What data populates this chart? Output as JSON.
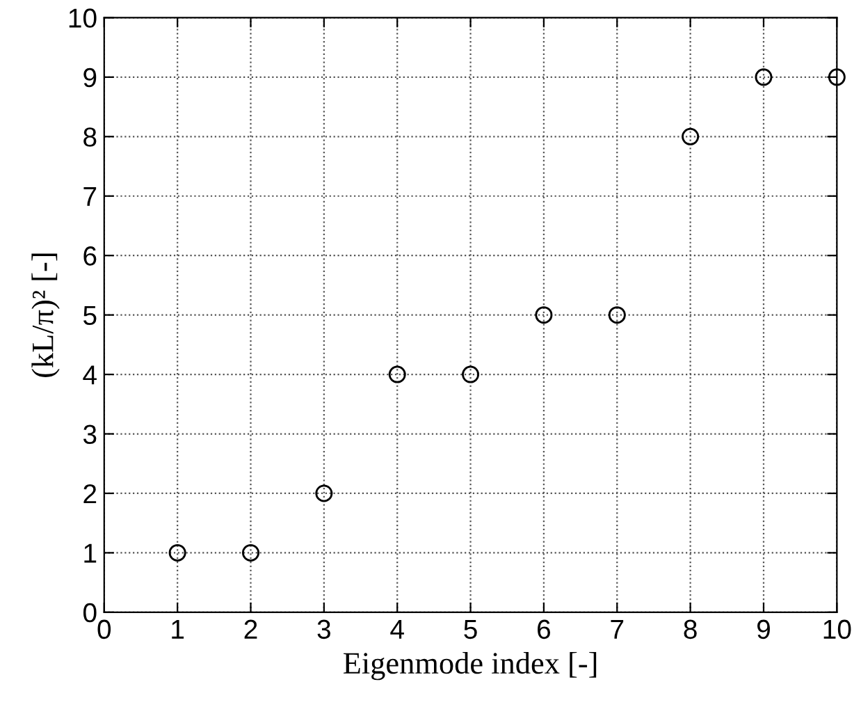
{
  "chart_data": {
    "type": "scatter",
    "xlabel": "Eigenmode index [-]",
    "ylabel": "(kL/π)² [-]",
    "x": [
      1,
      2,
      3,
      4,
      5,
      6,
      7,
      8,
      9,
      10
    ],
    "values": [
      1,
      1,
      2,
      4,
      4,
      5,
      5,
      8,
      9,
      9
    ],
    "color": "#000000",
    "marker": "circle",
    "xlim": [
      0,
      10
    ],
    "ylim": [
      0,
      10
    ],
    "xticks": [
      0,
      1,
      2,
      3,
      4,
      5,
      6,
      7,
      8,
      9,
      10
    ],
    "yticks": [
      0,
      1,
      2,
      3,
      4,
      5,
      6,
      7,
      8,
      9,
      10
    ],
    "grid": true
  }
}
